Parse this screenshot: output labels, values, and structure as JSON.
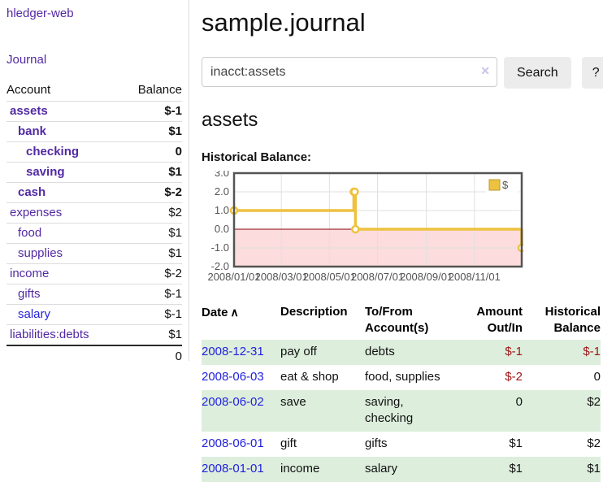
{
  "app": {
    "title": "hledger-web"
  },
  "sidebar": {
    "journal_label": "Journal",
    "accounts_table": {
      "headers": {
        "account": "Account",
        "balance": "Balance"
      },
      "rows": [
        {
          "name": "assets",
          "indent": 0,
          "bold": true,
          "balance": "$-1",
          "negative": "strong"
        },
        {
          "name": "bank",
          "indent": 1,
          "bold": true,
          "balance": "$1"
        },
        {
          "name": "checking",
          "indent": 2,
          "bold": true,
          "balance": "0"
        },
        {
          "name": "saving",
          "indent": 2,
          "bold": true,
          "balance": "$1"
        },
        {
          "name": "cash",
          "indent": 1,
          "bold": true,
          "balance": "$-2",
          "negative": "strong"
        },
        {
          "name": "expenses",
          "indent": 0,
          "balance": "$2"
        },
        {
          "name": "food",
          "indent": 1,
          "balance": "$1"
        },
        {
          "name": "supplies",
          "indent": 1,
          "balance": "$1"
        },
        {
          "name": "income",
          "indent": 0,
          "balance": "$-2",
          "negative": "soft"
        },
        {
          "name": "gifts",
          "indent": 1,
          "balance": "$-1",
          "negative": "soft"
        },
        {
          "name": "salary",
          "indent": 1,
          "balance": "$-1",
          "negative": "soft",
          "link": "blue"
        },
        {
          "name": "liabilities:debts",
          "indent": 0,
          "balance": "$1"
        }
      ],
      "total": "0"
    }
  },
  "main": {
    "title": "sample.journal",
    "search": {
      "value": "inacct:assets",
      "clear_icon": "✕",
      "button_label": "Search",
      "help_label": "?"
    },
    "account_heading": "assets",
    "chart_heading": "Historical Balance:",
    "register": {
      "headers": [
        {
          "label": "Date",
          "sort": "∧"
        },
        {
          "label": "Description"
        },
        {
          "label": "To/From",
          "label2": "Account(s)"
        },
        {
          "label": "Amount",
          "label2": "Out/In"
        },
        {
          "label": "Historical",
          "label2": "Balance"
        }
      ],
      "rows": [
        {
          "date": "2008-12-31",
          "description": "pay off",
          "accounts": "debts",
          "amount": "$-1",
          "amount_neg": true,
          "balance": "$-1",
          "balance_neg": true
        },
        {
          "date": "2008-06-03",
          "description": "eat & shop",
          "accounts": "food, supplies",
          "amount": "$-2",
          "amount_neg": true,
          "balance": "0"
        },
        {
          "date": "2008-06-02",
          "description": "save",
          "accounts": "saving, checking",
          "amount": "0",
          "balance": "$2"
        },
        {
          "date": "2008-06-01",
          "description": "gift",
          "accounts": "gifts",
          "amount": "$1",
          "balance": "$2"
        },
        {
          "date": "2008-01-01",
          "description": "income",
          "accounts": "salary",
          "amount": "$1",
          "balance": "$1"
        }
      ]
    }
  },
  "chart_data": {
    "type": "line",
    "step": true,
    "title": "Historical Balance",
    "series": [
      {
        "name": "$",
        "color": "#edc240",
        "points": [
          [
            "2008-01-01",
            1
          ],
          [
            "2008-06-01",
            2
          ],
          [
            "2008-06-02",
            2
          ],
          [
            "2008-06-03",
            0
          ],
          [
            "2008-12-31",
            -1
          ]
        ]
      }
    ],
    "x_ticks": [
      "2008/01/01",
      "2008/03/01",
      "2008/05/01",
      "2008/07/01",
      "2008/09/01",
      "2008/11/01"
    ],
    "y_ticks": [
      3,
      2,
      1,
      0,
      -1,
      -2
    ],
    "xlim": [
      "2008-01-01",
      "2008-12-31"
    ],
    "ylim": [
      -2,
      3
    ],
    "grid": true,
    "legend_position": "top-right",
    "colors": {
      "negative_region": "#fcdcdc",
      "zero_line": "#8b0000",
      "border": "#545454",
      "gridline": "#e0e0e0",
      "tick_label": "#545454"
    }
  }
}
